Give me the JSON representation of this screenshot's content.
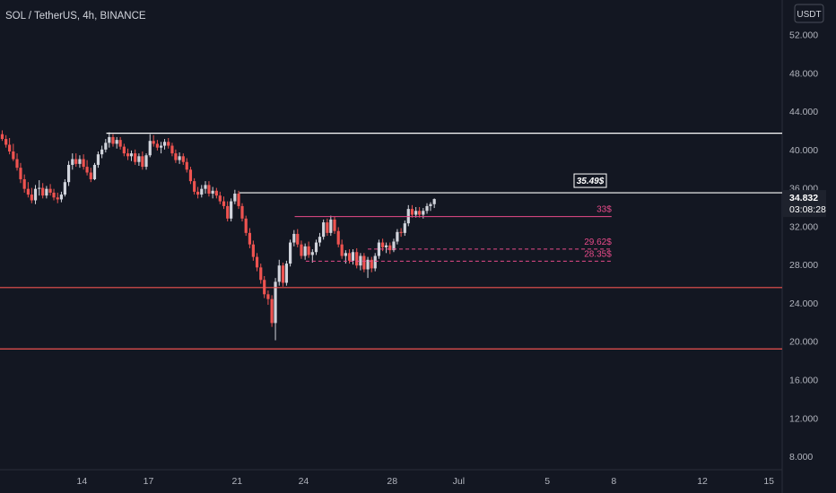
{
  "chart_data": {
    "type": "candlestick",
    "title": "SOL / TetherUS, 4h, BINANCE",
    "currency": "USDT",
    "y_ticks": [
      "52.000",
      "48.000",
      "44.000",
      "40.000",
      "36.000",
      "32.000",
      "28.000",
      "24.000",
      "20.000",
      "16.000",
      "12.000",
      "8.000"
    ],
    "y_tick_values": [
      52,
      48,
      44,
      40,
      36,
      32,
      28,
      24,
      20,
      16,
      12,
      8
    ],
    "x_ticks": [
      {
        "label": "14",
        "day": 14
      },
      {
        "label": "17",
        "day": 17
      },
      {
        "label": "21",
        "day": 21
      },
      {
        "label": "24",
        "day": 24
      },
      {
        "label": "28",
        "day": 28
      },
      {
        "label": "Jul",
        "day": 31
      },
      {
        "label": "5",
        "day": 35
      },
      {
        "label": "8",
        "day": 38
      },
      {
        "label": "12",
        "day": 42
      },
      {
        "label": "15",
        "day": 45
      }
    ],
    "ylim": [
      6.6,
      55.6
    ],
    "xlim_day": [
      10.3,
      45.6
    ],
    "last_price": "34.832",
    "countdown": "03:08:28",
    "up_color": "#d1d4dc",
    "down_color": "#ef5350",
    "horizontal_levels": [
      {
        "price": 41.7,
        "color": "#ffffff",
        "from_day": 15.1,
        "label": ""
      },
      {
        "price": 35.49,
        "color": "#ffffff",
        "from_day": 21.1,
        "label": "35.49$"
      },
      {
        "price": 25.6,
        "color": "#ef5350",
        "from_day": 10.3,
        "label": ""
      },
      {
        "price": 19.2,
        "color": "#ef5350",
        "from_day": 10.3,
        "label": ""
      }
    ],
    "target_levels": [
      {
        "price": 33.0,
        "label": "33$",
        "from_day": 23.6,
        "to_day": 37.9,
        "dashed": false
      },
      {
        "price": 29.62,
        "label": "29.62$",
        "from_day": 26.9,
        "to_day": 37.9,
        "dashed": true
      },
      {
        "price": 28.35,
        "label": "28.35$",
        "from_day": 24.1,
        "to_day": 37.9,
        "dashed": true
      }
    ],
    "candles": [
      [
        10.4,
        41.6,
        42.0,
        40.9,
        41.1
      ],
      [
        10.57,
        41.1,
        41.5,
        40.2,
        40.5
      ],
      [
        10.73,
        40.5,
        41.2,
        39.5,
        39.8
      ],
      [
        10.9,
        39.8,
        40.6,
        38.8,
        39.0
      ],
      [
        11.07,
        39.0,
        39.6,
        37.8,
        38.1
      ],
      [
        11.23,
        38.1,
        38.6,
        36.5,
        36.9
      ],
      [
        11.4,
        36.9,
        37.4,
        35.5,
        35.9
      ],
      [
        11.57,
        35.9,
        36.6,
        35.0,
        35.3
      ],
      [
        11.73,
        35.3,
        36.0,
        34.4,
        34.7
      ],
      [
        11.9,
        34.7,
        36.3,
        34.3,
        35.9
      ],
      [
        12.07,
        35.9,
        36.8,
        35.2,
        36.0
      ],
      [
        12.23,
        36.0,
        36.5,
        34.9,
        35.2
      ],
      [
        12.4,
        35.2,
        36.2,
        34.9,
        35.9
      ],
      [
        12.57,
        35.9,
        36.4,
        35.2,
        35.5
      ],
      [
        12.73,
        35.5,
        35.9,
        34.7,
        35.0
      ],
      [
        12.9,
        35.0,
        35.5,
        34.4,
        34.8
      ],
      [
        13.07,
        34.8,
        35.6,
        34.5,
        35.3
      ],
      [
        13.23,
        35.3,
        36.9,
        35.1,
        36.6
      ],
      [
        13.4,
        36.6,
        38.8,
        36.2,
        38.4
      ],
      [
        13.57,
        38.4,
        39.6,
        37.9,
        39.0
      ],
      [
        13.73,
        39.0,
        39.6,
        38.2,
        38.5
      ],
      [
        13.9,
        38.5,
        39.4,
        38.1,
        39.0
      ],
      [
        14.07,
        39.0,
        39.5,
        37.9,
        38.2
      ],
      [
        14.23,
        38.2,
        38.9,
        37.3,
        37.6
      ],
      [
        14.4,
        37.6,
        38.1,
        36.6,
        36.9
      ],
      [
        14.57,
        36.9,
        38.6,
        36.8,
        38.4
      ],
      [
        14.73,
        38.4,
        39.8,
        38.1,
        39.5
      ],
      [
        14.9,
        39.5,
        40.4,
        39.1,
        40.0
      ],
      [
        15.07,
        40.0,
        41.1,
        39.7,
        40.7
      ],
      [
        15.23,
        40.7,
        41.8,
        40.2,
        41.3
      ],
      [
        15.4,
        41.3,
        41.6,
        40.3,
        40.6
      ],
      [
        15.57,
        40.6,
        41.3,
        40.1,
        41.0
      ],
      [
        15.73,
        41.0,
        41.3,
        40.0,
        40.3
      ],
      [
        15.9,
        40.3,
        40.6,
        39.3,
        39.6
      ],
      [
        16.07,
        39.6,
        40.1,
        38.9,
        39.3
      ],
      [
        16.23,
        39.3,
        39.9,
        38.8,
        39.6
      ],
      [
        16.4,
        39.6,
        40.0,
        38.4,
        38.7
      ],
      [
        16.57,
        38.7,
        39.6,
        38.3,
        39.3
      ],
      [
        16.73,
        39.3,
        39.8,
        37.9,
        38.2
      ],
      [
        16.9,
        38.2,
        39.6,
        37.9,
        39.4
      ],
      [
        17.07,
        39.4,
        41.6,
        39.2,
        40.9
      ],
      [
        17.23,
        40.9,
        41.5,
        40.3,
        40.6
      ],
      [
        17.4,
        40.6,
        41.0,
        39.9,
        40.2
      ],
      [
        17.57,
        40.2,
        40.8,
        39.6,
        40.4
      ],
      [
        17.73,
        40.4,
        41.1,
        40.0,
        40.8
      ],
      [
        17.9,
        40.8,
        41.2,
        40.1,
        40.4
      ],
      [
        18.07,
        40.4,
        40.7,
        39.3,
        39.6
      ],
      [
        18.23,
        39.6,
        40.0,
        38.6,
        38.9
      ],
      [
        18.4,
        38.9,
        39.7,
        38.5,
        39.3
      ],
      [
        18.57,
        39.3,
        39.6,
        38.4,
        38.7
      ],
      [
        18.73,
        38.7,
        39.1,
        37.6,
        37.9
      ],
      [
        18.9,
        37.9,
        38.2,
        36.4,
        36.7
      ],
      [
        19.07,
        36.7,
        37.0,
        35.3,
        35.6
      ],
      [
        19.23,
        35.6,
        36.1,
        34.9,
        35.3
      ],
      [
        19.4,
        35.3,
        36.3,
        35.0,
        35.9
      ],
      [
        19.57,
        35.9,
        36.7,
        35.4,
        36.3
      ],
      [
        19.73,
        36.3,
        36.7,
        35.1,
        35.4
      ],
      [
        19.9,
        35.4,
        36.1,
        34.9,
        35.7
      ],
      [
        20.07,
        35.7,
        36.0,
        34.9,
        35.2
      ],
      [
        20.23,
        35.2,
        35.6,
        34.3,
        34.6
      ],
      [
        20.4,
        34.6,
        35.1,
        33.8,
        34.1
      ],
      [
        20.57,
        34.1,
        34.6,
        32.5,
        32.8
      ],
      [
        20.73,
        32.8,
        34.9,
        32.5,
        34.6
      ],
      [
        20.9,
        34.6,
        35.8,
        34.3,
        35.4
      ],
      [
        21.07,
        35.4,
        35.7,
        33.8,
        34.1
      ],
      [
        21.23,
        34.1,
        34.4,
        32.5,
        32.8
      ],
      [
        21.4,
        32.8,
        33.1,
        31.0,
        31.3
      ],
      [
        21.57,
        31.3,
        31.8,
        29.7,
        30.1
      ],
      [
        21.73,
        30.1,
        30.5,
        28.4,
        28.8
      ],
      [
        21.9,
        28.8,
        29.2,
        27.3,
        27.7
      ],
      [
        22.07,
        27.7,
        28.1,
        26.0,
        26.4
      ],
      [
        22.23,
        26.4,
        26.8,
        24.5,
        24.9
      ],
      [
        22.4,
        24.9,
        25.3,
        23.8,
        24.4
      ],
      [
        22.57,
        24.4,
        24.8,
        21.5,
        21.9
      ],
      [
        22.73,
        21.9,
        26.6,
        20.1,
        26.2
      ],
      [
        22.9,
        26.2,
        28.5,
        25.8,
        27.9
      ],
      [
        23.07,
        27.9,
        28.2,
        25.7,
        26.1
      ],
      [
        23.23,
        26.1,
        28.4,
        25.8,
        28.1
      ],
      [
        23.4,
        28.1,
        30.6,
        27.8,
        30.3
      ],
      [
        23.57,
        30.3,
        31.6,
        29.9,
        31.2
      ],
      [
        23.73,
        31.2,
        31.7,
        29.8,
        30.1
      ],
      [
        23.9,
        30.1,
        30.5,
        28.6,
        28.9
      ],
      [
        24.07,
        28.9,
        30.2,
        28.5,
        29.9
      ],
      [
        24.23,
        29.9,
        30.4,
        28.7,
        29.0
      ],
      [
        24.4,
        29.0,
        29.6,
        28.2,
        29.3
      ],
      [
        24.57,
        29.3,
        30.6,
        29.0,
        30.3
      ],
      [
        24.73,
        30.3,
        31.3,
        29.9,
        30.9
      ],
      [
        24.9,
        30.9,
        32.7,
        30.6,
        32.4
      ],
      [
        25.07,
        32.4,
        32.8,
        31.0,
        31.3
      ],
      [
        25.23,
        31.3,
        33.1,
        31.0,
        32.7
      ],
      [
        25.4,
        32.7,
        33.0,
        31.2,
        31.5
      ],
      [
        25.57,
        31.5,
        31.9,
        29.8,
        30.1
      ],
      [
        25.73,
        30.1,
        30.6,
        28.6,
        28.9
      ],
      [
        25.9,
        28.9,
        29.5,
        28.1,
        29.2
      ],
      [
        26.07,
        29.2,
        29.6,
        28.1,
        28.4
      ],
      [
        26.23,
        28.4,
        29.6,
        28.0,
        29.3
      ],
      [
        26.4,
        29.3,
        29.7,
        27.6,
        27.9
      ],
      [
        26.57,
        27.9,
        29.2,
        27.4,
        28.9
      ],
      [
        26.73,
        28.9,
        29.2,
        27.2,
        27.5
      ],
      [
        26.9,
        27.5,
        28.8,
        26.6,
        28.5
      ],
      [
        27.07,
        28.5,
        28.8,
        27.2,
        27.6
      ],
      [
        27.23,
        27.6,
        29.2,
        27.3,
        28.9
      ],
      [
        27.4,
        28.9,
        30.6,
        28.6,
        30.3
      ],
      [
        27.57,
        30.3,
        30.7,
        29.4,
        29.8
      ],
      [
        27.73,
        29.8,
        30.3,
        29.2,
        30.0
      ],
      [
        27.9,
        30.0,
        30.3,
        29.1,
        29.5
      ],
      [
        28.07,
        29.5,
        30.7,
        29.3,
        30.4
      ],
      [
        28.23,
        30.4,
        31.7,
        30.1,
        31.4
      ],
      [
        28.4,
        31.4,
        31.8,
        30.9,
        31.3
      ],
      [
        28.57,
        31.3,
        32.6,
        31.0,
        32.3
      ],
      [
        28.73,
        32.3,
        34.2,
        32.0,
        33.8
      ],
      [
        28.9,
        33.8,
        34.2,
        32.9,
        33.2
      ],
      [
        29.07,
        33.2,
        34.0,
        32.9,
        33.6
      ],
      [
        29.23,
        33.6,
        34.0,
        32.9,
        33.2
      ],
      [
        29.4,
        33.2,
        33.9,
        32.8,
        33.6
      ],
      [
        29.57,
        33.6,
        34.4,
        33.3,
        34.1
      ],
      [
        29.73,
        34.1,
        34.5,
        33.6,
        34.3
      ],
      [
        29.9,
        34.3,
        34.9,
        33.9,
        34.832
      ]
    ]
  }
}
